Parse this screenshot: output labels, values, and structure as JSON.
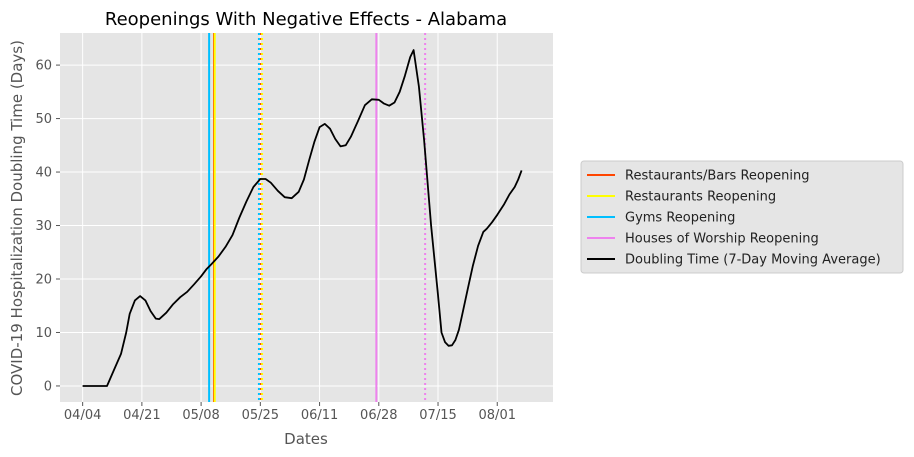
{
  "chart_data": {
    "type": "line",
    "title": "Reopenings With Negative Effects - Alabama",
    "xlabel": "Dates",
    "ylabel": "COVID-19 Hospitalization Doubling Time (Days)",
    "x_ticks": [
      {
        "label": "04/04",
        "day": 0
      },
      {
        "label": "04/21",
        "day": 17
      },
      {
        "label": "05/08",
        "day": 34
      },
      {
        "label": "05/25",
        "day": 51
      },
      {
        "label": "06/11",
        "day": 68
      },
      {
        "label": "06/28",
        "day": 85
      },
      {
        "label": "07/15",
        "day": 102
      },
      {
        "label": "08/01",
        "day": 119
      }
    ],
    "xlim": [
      -6.5,
      135
    ],
    "ylim": [
      -3,
      66
    ],
    "y_ticks": [
      0,
      10,
      20,
      30,
      40,
      50,
      60
    ],
    "grid": true,
    "legend_position": "right",
    "series": [
      {
        "name": "Doubling Time (7-Day Moving Average)",
        "color": "#000000",
        "points": [
          [
            0,
            0
          ],
          [
            7,
            0
          ],
          [
            9,
            3
          ],
          [
            11,
            6
          ],
          [
            12.5,
            10
          ],
          [
            13.5,
            13.5
          ],
          [
            15,
            16
          ],
          [
            16.5,
            16.8
          ],
          [
            18,
            16
          ],
          [
            19.5,
            14
          ],
          [
            21,
            12.6
          ],
          [
            22,
            12.5
          ],
          [
            24,
            13.7
          ],
          [
            26,
            15.3
          ],
          [
            28,
            16.6
          ],
          [
            30,
            17.6
          ],
          [
            32,
            19
          ],
          [
            34,
            20.5
          ],
          [
            35.5,
            21.8
          ],
          [
            37,
            22.8
          ],
          [
            39,
            24.2
          ],
          [
            41,
            26
          ],
          [
            43,
            28.2
          ],
          [
            45,
            31.5
          ],
          [
            47,
            34.5
          ],
          [
            49,
            37.2
          ],
          [
            51,
            38.7
          ],
          [
            52.5,
            38.7
          ],
          [
            54,
            38
          ],
          [
            56,
            36.5
          ],
          [
            58,
            35.3
          ],
          [
            60,
            35.1
          ],
          [
            62,
            36.3
          ],
          [
            63.5,
            38.6
          ],
          [
            65,
            42.2
          ],
          [
            66.5,
            45.6
          ],
          [
            68,
            48.4
          ],
          [
            69.5,
            49
          ],
          [
            71,
            48.1
          ],
          [
            72.5,
            46.2
          ],
          [
            74,
            44.8
          ],
          [
            75.5,
            45
          ],
          [
            77,
            46.6
          ],
          [
            79,
            49.5
          ],
          [
            81,
            52.5
          ],
          [
            83,
            53.6
          ],
          [
            85,
            53.5
          ],
          [
            86.5,
            52.8
          ],
          [
            88,
            52.4
          ],
          [
            89.5,
            53
          ],
          [
            91,
            55
          ],
          [
            92.5,
            58
          ],
          [
            94,
            61.5
          ],
          [
            95,
            62.8
          ],
          [
            96.5,
            56
          ],
          [
            98,
            46
          ],
          [
            100,
            30
          ],
          [
            102,
            17
          ],
          [
            103,
            10
          ],
          [
            104,
            8.2
          ],
          [
            105,
            7.5
          ],
          [
            106,
            7.6
          ],
          [
            107,
            8.6
          ],
          [
            108,
            10.5
          ],
          [
            109,
            13.5
          ],
          [
            110.5,
            18
          ],
          [
            112,
            22.5
          ],
          [
            113.5,
            26.2
          ],
          [
            115,
            28.8
          ],
          [
            116,
            29.4
          ],
          [
            117.5,
            30.6
          ],
          [
            119,
            32
          ],
          [
            121,
            34
          ],
          [
            122.5,
            35.8
          ],
          [
            124,
            37.2
          ],
          [
            125,
            38.6
          ],
          [
            126,
            40.3
          ]
        ]
      }
    ],
    "reopenings": [
      {
        "name": "Restaurants/Bars Reopening",
        "color": "#ff4500",
        "solid_day": 37.7,
        "dotted_day": 51.2
      },
      {
        "name": "Restaurants Reopening",
        "color": "#ffff00",
        "solid_day": 37.9,
        "dotted_day": 51.5
      },
      {
        "name": "Gyms Reopening",
        "color": "#00bfff",
        "solid_day": 36.3,
        "dotted_day": 50.6
      },
      {
        "name": "Houses of Worship Reopening",
        "color": "#ee82ee",
        "solid_day": 84.3,
        "dotted_day": 98.3
      }
    ]
  }
}
